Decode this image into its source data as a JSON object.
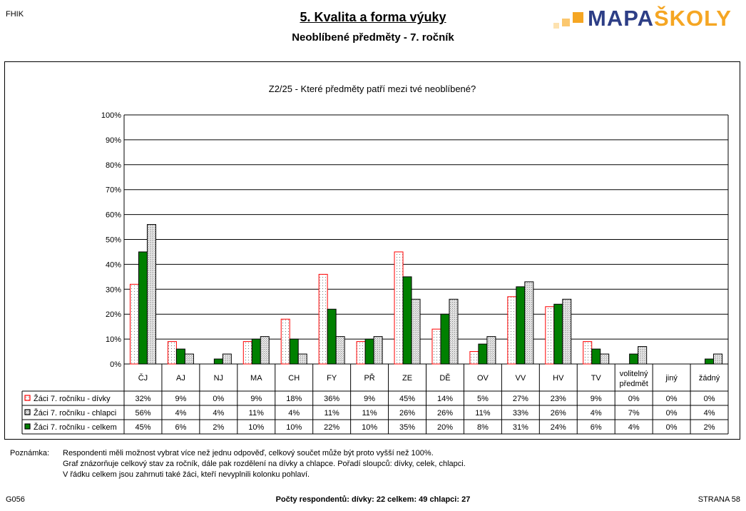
{
  "header": {
    "left": "FHIK",
    "title": "5. Kvalita a forma výuky",
    "subtitle": "Neoblíbené předměty -  7. ročník"
  },
  "logo": {
    "text_main": "MAPA",
    "text_accent": "ŠKOLY",
    "color_main": "#2d3e86",
    "color_accent": "#f5a623"
  },
  "chart_data": {
    "type": "bar",
    "title": "Z2/25 - Které předměty patří mezi tvé neoblíbené?",
    "categories": [
      "ČJ",
      "AJ",
      "NJ",
      "MA",
      "CH",
      "FY",
      "PŘ",
      "ZE",
      "DĚ",
      "OV",
      "VV",
      "HV",
      "TV",
      "volitelný předmět",
      "jiný",
      "žádný"
    ],
    "ylim": [
      0,
      100
    ],
    "yticks": [
      "0%",
      "10%",
      "20%",
      "30%",
      "40%",
      "50%",
      "60%",
      "70%",
      "80%",
      "90%",
      "100%"
    ],
    "grid": true,
    "legend_placement": "table-below",
    "series": [
      {
        "name": "Žáci 7. ročníku - dívky",
        "values": [
          32,
          9,
          0,
          9,
          18,
          36,
          9,
          45,
          14,
          5,
          27,
          23,
          9,
          0,
          0,
          0
        ],
        "labels": [
          "32%",
          "9%",
          "0%",
          "9%",
          "18%",
          "36%",
          "9%",
          "45%",
          "14%",
          "5%",
          "27%",
          "23%",
          "9%",
          "0%",
          "0%",
          "0%"
        ],
        "fill": "#ffffff",
        "stroke": "#ff0000",
        "pattern": "dots"
      },
      {
        "name": "Žáci 7. ročníku - celkem",
        "values": [
          45,
          6,
          2,
          10,
          10,
          22,
          10,
          35,
          20,
          8,
          31,
          24,
          6,
          4,
          0,
          2
        ],
        "labels": [
          "45%",
          "6%",
          "2%",
          "10%",
          "10%",
          "22%",
          "10%",
          "35%",
          "20%",
          "8%",
          "31%",
          "24%",
          "6%",
          "4%",
          "0%",
          "2%"
        ],
        "fill": "#008000",
        "stroke": "#000000",
        "pattern": "solid"
      },
      {
        "name": "Žáci 7. ročníku - chlapci",
        "values": [
          56,
          4,
          4,
          11,
          4,
          11,
          11,
          26,
          26,
          11,
          33,
          26,
          4,
          7,
          0,
          4
        ],
        "labels": [
          "56%",
          "4%",
          "4%",
          "11%",
          "4%",
          "11%",
          "11%",
          "26%",
          "26%",
          "11%",
          "33%",
          "26%",
          "4%",
          "7%",
          "0%",
          "4%"
        ],
        "fill": "#d8d8d8",
        "stroke": "#000000",
        "pattern": "grid"
      }
    ],
    "table_row_order": [
      0,
      2,
      1
    ]
  },
  "notes": {
    "label": "Poznámka:",
    "lines": [
      "Respondenti měli možnost vybrat více než jednu odpověď, celkový součet může být proto vyšší než 100%.",
      "Graf znázorňuje celkový stav za ročník, dále pak rozdělení na dívky a chlapce. Pořadí sloupců: dívky, celek, chlapci.",
      "V řádku celkem jsou zahrnuti také žáci, kteří nevyplnili kolonku pohlaví."
    ]
  },
  "footer": {
    "left": "G056",
    "center": "Počty respondentů:    dívky: 22    celkem: 49    chlapci: 27",
    "right": "STRANA  58"
  }
}
